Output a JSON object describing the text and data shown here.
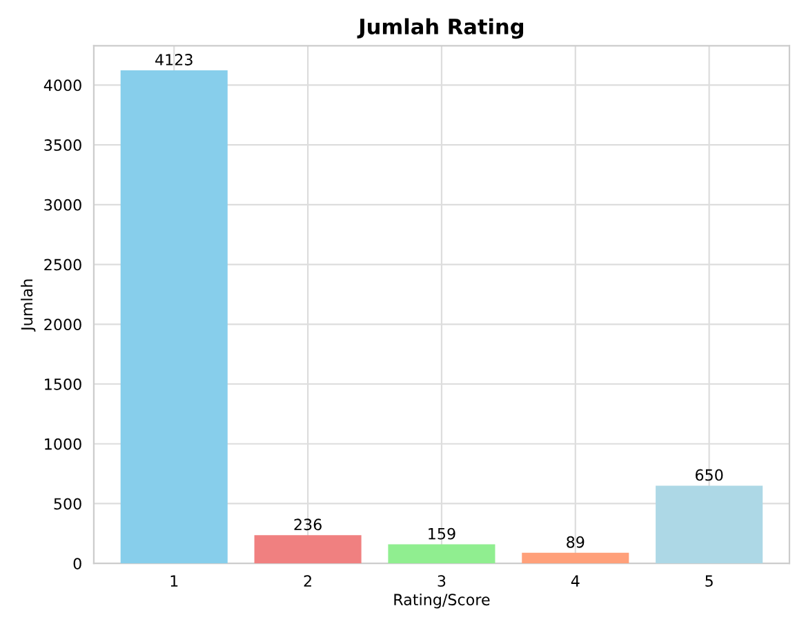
{
  "chart_data": {
    "type": "bar",
    "title": "Jumlah Rating",
    "xlabel": "Rating/Score",
    "ylabel": "Jumlah",
    "categories": [
      "1",
      "2",
      "3",
      "4",
      "5"
    ],
    "values": [
      4123,
      236,
      159,
      89,
      650
    ],
    "colors": [
      "#87ceeb",
      "#f08080",
      "#90ee90",
      "#ffa07a",
      "#add8e6"
    ],
    "ylim": [
      0,
      4329
    ],
    "yticks": [
      0,
      500,
      1000,
      1500,
      2000,
      2500,
      3000,
      3500,
      4000
    ],
    "grid": true,
    "data_labels": true
  }
}
